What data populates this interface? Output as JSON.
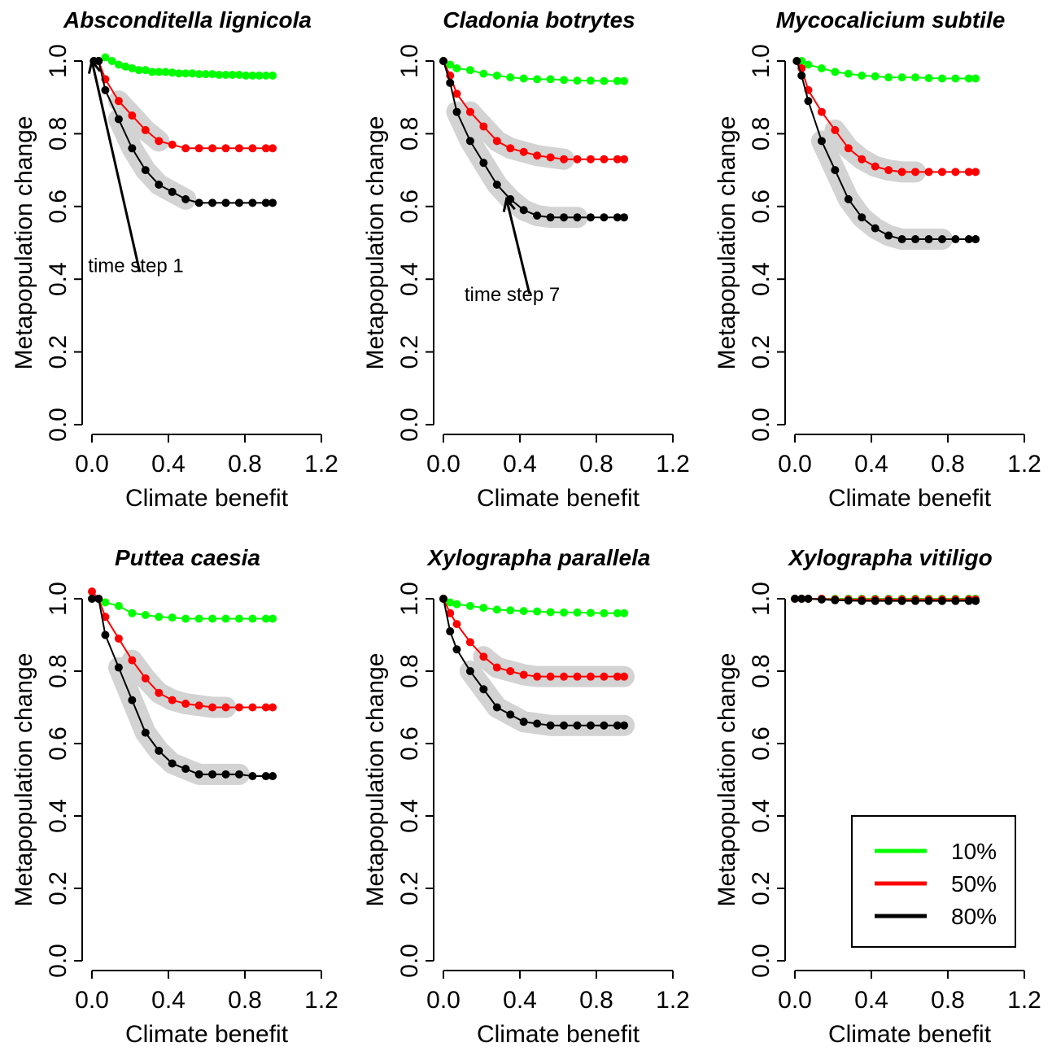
{
  "chart_data": [
    {
      "type": "line",
      "title": "Absconditella lignicola",
      "xlabel": "Climate benefit",
      "ylabel": "Metapopulation change",
      "xlim": [
        0,
        1.2
      ],
      "ylim": [
        0,
        1.0
      ],
      "xticks": [
        "0.0",
        "0.4",
        "0.8",
        "1.2"
      ],
      "yticks": [
        "0.0",
        "0.2",
        "0.4",
        "0.6",
        "0.8",
        "1.0"
      ],
      "series": [
        {
          "name": "10%",
          "color": "#00ff00",
          "x": [
            0.01,
            0.035,
            0.07,
            0.105,
            0.14,
            0.175,
            0.21,
            0.245,
            0.28,
            0.315,
            0.35,
            0.385,
            0.42,
            0.455,
            0.49,
            0.525,
            0.56,
            0.595,
            0.63,
            0.665,
            0.7,
            0.735,
            0.77,
            0.805,
            0.84,
            0.875,
            0.91,
            0.945
          ],
          "y": [
            1.0,
            1.0,
            1.01,
            1.0,
            0.99,
            0.985,
            0.98,
            0.975,
            0.975,
            0.97,
            0.97,
            0.97,
            0.968,
            0.966,
            0.966,
            0.966,
            0.964,
            0.964,
            0.964,
            0.962,
            0.962,
            0.962,
            0.962,
            0.96,
            0.96,
            0.96,
            0.96,
            0.96
          ],
          "x_display": [
            0.01,
            0.035,
            0.07,
            0.14,
            0.21,
            0.28,
            0.35,
            0.42,
            0.49,
            0.56,
            0.63,
            0.7,
            0.77,
            0.84,
            0.91,
            0.945
          ]
        },
        {
          "name": "50%",
          "color": "#ff0000",
          "x": [
            0.01,
            0.035,
            0.07,
            0.14,
            0.21,
            0.28,
            0.35,
            0.42,
            0.49,
            0.56,
            0.63,
            0.7,
            0.77,
            0.84,
            0.91,
            0.945
          ],
          "y": [
            1.0,
            1.0,
            0.95,
            0.89,
            0.85,
            0.81,
            0.78,
            0.77,
            0.76,
            0.76,
            0.76,
            0.76,
            0.76,
            0.76,
            0.76,
            0.76
          ]
        },
        {
          "name": "80%",
          "color": "#000000",
          "x": [
            0.01,
            0.035,
            0.07,
            0.14,
            0.21,
            0.28,
            0.35,
            0.42,
            0.49,
            0.56,
            0.63,
            0.7,
            0.77,
            0.84,
            0.91,
            0.945
          ],
          "y": [
            1.0,
            1.0,
            0.92,
            0.84,
            0.76,
            0.7,
            0.66,
            0.64,
            0.62,
            0.61,
            0.61,
            0.61,
            0.61,
            0.61,
            0.61,
            0.61
          ]
        }
      ],
      "highlights": [
        {
          "series": 1,
          "from": 0.14,
          "to": 0.35
        },
        {
          "series": 2,
          "from": 0.14,
          "to": 0.49
        }
      ],
      "annotation": {
        "text": "time step 1",
        "arrow_from": [
          0.25,
          0.42
        ],
        "arrow_to": [
          0.0,
          1.0
        ],
        "text_at": [
          -0.02,
          0.42
        ]
      }
    },
    {
      "type": "line",
      "title": "Cladonia botrytes",
      "xlabel": "Climate benefit",
      "ylabel": "Metapopulation change",
      "xlim": [
        0,
        1.2
      ],
      "ylim": [
        0,
        1.0
      ],
      "xticks": [
        "0.0",
        "0.4",
        "0.8",
        "1.2"
      ],
      "yticks": [
        "0.0",
        "0.2",
        "0.4",
        "0.6",
        "0.8",
        "1.0"
      ],
      "series": [
        {
          "name": "10%",
          "color": "#00ff00",
          "x": [
            0.0,
            0.035,
            0.07,
            0.14,
            0.21,
            0.28,
            0.35,
            0.42,
            0.49,
            0.56,
            0.63,
            0.7,
            0.77,
            0.84,
            0.91,
            0.945
          ],
          "y": [
            1.0,
            0.99,
            0.98,
            0.975,
            0.965,
            0.96,
            0.955,
            0.952,
            0.95,
            0.95,
            0.948,
            0.946,
            0.946,
            0.945,
            0.945,
            0.945
          ]
        },
        {
          "name": "50%",
          "color": "#ff0000",
          "x": [
            0.0,
            0.035,
            0.07,
            0.14,
            0.21,
            0.28,
            0.35,
            0.42,
            0.49,
            0.56,
            0.63,
            0.7,
            0.77,
            0.84,
            0.91,
            0.945
          ],
          "y": [
            1.0,
            0.96,
            0.91,
            0.86,
            0.82,
            0.78,
            0.76,
            0.75,
            0.74,
            0.735,
            0.73,
            0.73,
            0.73,
            0.73,
            0.73,
            0.73
          ]
        },
        {
          "name": "80%",
          "color": "#000000",
          "x": [
            0.0,
            0.035,
            0.07,
            0.14,
            0.21,
            0.28,
            0.35,
            0.42,
            0.49,
            0.56,
            0.63,
            0.7,
            0.77,
            0.84,
            0.91,
            0.945
          ],
          "y": [
            1.0,
            0.94,
            0.86,
            0.78,
            0.72,
            0.66,
            0.62,
            0.59,
            0.575,
            0.57,
            0.57,
            0.57,
            0.57,
            0.57,
            0.57,
            0.57
          ]
        }
      ],
      "highlights": [
        {
          "series": 1,
          "from": 0.14,
          "to": 0.63
        },
        {
          "series": 2,
          "from": 0.07,
          "to": 0.7
        }
      ],
      "annotation": {
        "text": "time step 7",
        "arrow_from": [
          0.45,
          0.36
        ],
        "arrow_to": [
          0.33,
          0.62
        ],
        "text_at": [
          0.11,
          0.34
        ]
      }
    },
    {
      "type": "line",
      "title": "Mycocalicium subtile",
      "xlabel": "Climate benefit",
      "ylabel": "Metapopulation change",
      "xlim": [
        0,
        1.2
      ],
      "ylim": [
        0,
        1.0
      ],
      "xticks": [
        "0.0",
        "0.4",
        "0.8",
        "1.2"
      ],
      "yticks": [
        "0.0",
        "0.2",
        "0.4",
        "0.6",
        "0.8",
        "1.0"
      ],
      "series": [
        {
          "name": "10%",
          "color": "#00ff00",
          "x": [
            0.01,
            0.035,
            0.07,
            0.14,
            0.21,
            0.28,
            0.35,
            0.42,
            0.49,
            0.56,
            0.63,
            0.7,
            0.77,
            0.84,
            0.91,
            0.945
          ],
          "y": [
            1.0,
            1.0,
            0.99,
            0.98,
            0.97,
            0.965,
            0.96,
            0.958,
            0.955,
            0.955,
            0.955,
            0.953,
            0.952,
            0.952,
            0.952,
            0.952
          ]
        },
        {
          "name": "50%",
          "color": "#ff0000",
          "x": [
            0.01,
            0.035,
            0.07,
            0.14,
            0.21,
            0.28,
            0.35,
            0.42,
            0.49,
            0.56,
            0.63,
            0.7,
            0.77,
            0.84,
            0.91,
            0.945
          ],
          "y": [
            1.0,
            0.98,
            0.92,
            0.86,
            0.81,
            0.76,
            0.73,
            0.71,
            0.7,
            0.695,
            0.695,
            0.695,
            0.695,
            0.695,
            0.695,
            0.695
          ]
        },
        {
          "name": "80%",
          "color": "#000000",
          "x": [
            0.01,
            0.035,
            0.07,
            0.14,
            0.21,
            0.28,
            0.35,
            0.42,
            0.49,
            0.56,
            0.63,
            0.7,
            0.77,
            0.84,
            0.91,
            0.945
          ],
          "y": [
            1.0,
            0.96,
            0.89,
            0.78,
            0.7,
            0.62,
            0.57,
            0.54,
            0.52,
            0.51,
            0.51,
            0.51,
            0.51,
            0.51,
            0.51,
            0.51
          ]
        }
      ],
      "highlights": [
        {
          "series": 1,
          "from": 0.21,
          "to": 0.63
        },
        {
          "series": 2,
          "from": 0.14,
          "to": 0.77
        }
      ]
    },
    {
      "type": "line",
      "title": "Puttea caesia",
      "xlabel": "Climate benefit",
      "ylabel": "Metapopulation change",
      "xlim": [
        0,
        1.2
      ],
      "ylim": [
        0,
        1.0
      ],
      "xticks": [
        "0.0",
        "0.4",
        "0.8",
        "1.2"
      ],
      "yticks": [
        "0.0",
        "0.2",
        "0.4",
        "0.6",
        "0.8",
        "1.0"
      ],
      "series": [
        {
          "name": "10%",
          "color": "#00ff00",
          "x": [
            0.0,
            0.035,
            0.07,
            0.14,
            0.21,
            0.28,
            0.35,
            0.42,
            0.49,
            0.56,
            0.63,
            0.7,
            0.77,
            0.84,
            0.91,
            0.945
          ],
          "y": [
            1.0,
            1.0,
            0.99,
            0.98,
            0.96,
            0.955,
            0.95,
            0.948,
            0.945,
            0.945,
            0.945,
            0.945,
            0.945,
            0.945,
            0.945,
            0.945
          ]
        },
        {
          "name": "50%",
          "color": "#ff0000",
          "x": [
            0.0,
            0.035,
            0.07,
            0.14,
            0.21,
            0.28,
            0.35,
            0.42,
            0.49,
            0.56,
            0.63,
            0.7,
            0.77,
            0.84,
            0.91,
            0.945
          ],
          "y": [
            1.02,
            1.0,
            0.95,
            0.89,
            0.83,
            0.78,
            0.74,
            0.72,
            0.71,
            0.705,
            0.7,
            0.7,
            0.7,
            0.7,
            0.7,
            0.7
          ]
        },
        {
          "name": "80%",
          "color": "#000000",
          "x": [
            0.0,
            0.035,
            0.07,
            0.14,
            0.21,
            0.28,
            0.35,
            0.42,
            0.49,
            0.56,
            0.63,
            0.7,
            0.77,
            0.84,
            0.91,
            0.945
          ],
          "y": [
            1.0,
            1.0,
            0.9,
            0.81,
            0.72,
            0.63,
            0.58,
            0.545,
            0.53,
            0.515,
            0.515,
            0.515,
            0.515,
            0.51,
            0.51,
            0.51
          ]
        }
      ],
      "highlights": [
        {
          "series": 1,
          "from": 0.21,
          "to": 0.7
        },
        {
          "series": 2,
          "from": 0.14,
          "to": 0.77
        }
      ]
    },
    {
      "type": "line",
      "title": "Xylographa parallela",
      "xlabel": "Climate benefit",
      "ylabel": "Metapopulation change",
      "xlim": [
        0,
        1.2
      ],
      "ylim": [
        0,
        1.0
      ],
      "xticks": [
        "0.0",
        "0.4",
        "0.8",
        "1.2"
      ],
      "yticks": [
        "0.0",
        "0.2",
        "0.4",
        "0.6",
        "0.8",
        "1.0"
      ],
      "series": [
        {
          "name": "10%",
          "color": "#00ff00",
          "x": [
            0.0,
            0.035,
            0.07,
            0.14,
            0.21,
            0.28,
            0.35,
            0.42,
            0.49,
            0.56,
            0.63,
            0.7,
            0.77,
            0.84,
            0.91,
            0.945
          ],
          "y": [
            1.0,
            0.99,
            0.985,
            0.98,
            0.975,
            0.97,
            0.968,
            0.966,
            0.965,
            0.963,
            0.962,
            0.962,
            0.961,
            0.96,
            0.96,
            0.96
          ]
        },
        {
          "name": "50%",
          "color": "#ff0000",
          "x": [
            0.0,
            0.035,
            0.07,
            0.14,
            0.21,
            0.28,
            0.35,
            0.42,
            0.49,
            0.56,
            0.63,
            0.7,
            0.77,
            0.84,
            0.91,
            0.945
          ],
          "y": [
            1.0,
            0.96,
            0.93,
            0.88,
            0.84,
            0.81,
            0.8,
            0.79,
            0.785,
            0.785,
            0.785,
            0.785,
            0.785,
            0.785,
            0.785,
            0.785
          ]
        },
        {
          "name": "80%",
          "color": "#000000",
          "x": [
            0.0,
            0.035,
            0.07,
            0.14,
            0.21,
            0.28,
            0.35,
            0.42,
            0.49,
            0.56,
            0.63,
            0.7,
            0.77,
            0.84,
            0.91,
            0.945
          ],
          "y": [
            1.0,
            0.91,
            0.86,
            0.8,
            0.75,
            0.7,
            0.68,
            0.66,
            0.655,
            0.65,
            0.65,
            0.65,
            0.65,
            0.65,
            0.65,
            0.65
          ]
        }
      ],
      "highlights": [
        {
          "series": 1,
          "from": 0.21,
          "to": 0.945
        },
        {
          "series": 2,
          "from": 0.14,
          "to": 0.945
        }
      ]
    },
    {
      "type": "line",
      "title": "Xylographa vitiligo",
      "xlabel": "Climate benefit",
      "ylabel": "Metapopulation change",
      "xlim": [
        0,
        1.2
      ],
      "ylim": [
        0,
        1.0
      ],
      "xticks": [
        "0.0",
        "0.4",
        "0.8",
        "1.2"
      ],
      "yticks": [
        "0.0",
        "0.2",
        "0.4",
        "0.6",
        "0.8",
        "1.0"
      ],
      "series": [
        {
          "name": "10%",
          "color": "#00ff00",
          "x": [
            0.0,
            0.035,
            0.07,
            0.14,
            0.21,
            0.28,
            0.35,
            0.42,
            0.49,
            0.56,
            0.63,
            0.7,
            0.77,
            0.84,
            0.91,
            0.945
          ],
          "y": [
            1.0,
            1.0,
            1.0,
            1.0,
            1.0,
            1.0,
            1.0,
            1.0,
            1.0,
            1.0,
            1.0,
            1.0,
            1.0,
            1.0,
            1.0,
            1.0
          ]
        },
        {
          "name": "50%",
          "color": "#ff0000",
          "x": [
            0.0,
            0.035,
            0.07,
            0.14,
            0.21,
            0.28,
            0.35,
            0.42,
            0.49,
            0.56,
            0.63,
            0.7,
            0.77,
            0.84,
            0.91,
            0.945
          ],
          "y": [
            1.0,
            1.0,
            1.0,
            1.0,
            0.998,
            0.998,
            0.998,
            0.998,
            0.998,
            0.998,
            0.998,
            0.998,
            0.998,
            0.998,
            0.998,
            0.998
          ]
        },
        {
          "name": "80%",
          "color": "#000000",
          "x": [
            0.0,
            0.035,
            0.07,
            0.14,
            0.21,
            0.28,
            0.35,
            0.42,
            0.49,
            0.56,
            0.63,
            0.7,
            0.77,
            0.84,
            0.91,
            0.945
          ],
          "y": [
            1.0,
            1.0,
            1.0,
            0.998,
            0.996,
            0.995,
            0.994,
            0.994,
            0.994,
            0.994,
            0.994,
            0.994,
            0.994,
            0.994,
            0.994,
            0.994
          ]
        }
      ],
      "highlights": [],
      "legend": {
        "position": "bottom-right",
        "entries": [
          {
            "label": "10%",
            "color": "#00ff00"
          },
          {
            "label": "50%",
            "color": "#ff0000"
          },
          {
            "label": "80%",
            "color": "#000000"
          }
        ]
      }
    }
  ]
}
